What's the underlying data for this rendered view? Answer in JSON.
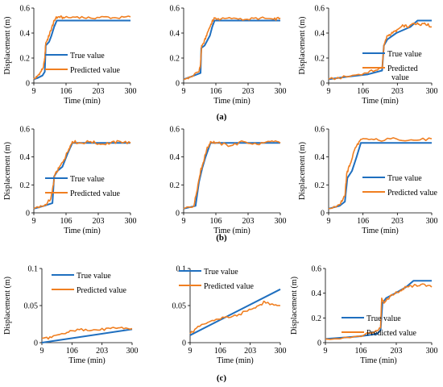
{
  "figure": {
    "captions": [
      "(a)",
      "(b)",
      "(c)"
    ],
    "colors": {
      "true": "#1f6fbf",
      "pred": "#f07f21",
      "axis": "#000000"
    }
  },
  "chart_data": [
    {
      "type": "line",
      "panel": "a1",
      "xlabel": "Time (min)",
      "ylabel": "Displacement (m)",
      "xlim": [
        9,
        300
      ],
      "ylim": [
        0,
        0.6
      ],
      "xticks": [
        "9",
        "106",
        "203",
        "300"
      ],
      "yticks": [
        "0",
        "0.2",
        "0.4",
        "0.6"
      ],
      "legend": [
        "True value",
        "Predicted value"
      ],
      "series": [
        {
          "name": "True value",
          "x": [
            9,
            20,
            35,
            42,
            45,
            55,
            62,
            70,
            78,
            300
          ],
          "y": [
            0.03,
            0.04,
            0.06,
            0.09,
            0.3,
            0.33,
            0.38,
            0.45,
            0.5,
            0.5
          ]
        },
        {
          "name": "Predicted value",
          "x": [
            9,
            18,
            30,
            38,
            42,
            45,
            52,
            60,
            68,
            75,
            85,
            100,
            140,
            180,
            220,
            260,
            300
          ],
          "y": [
            0.03,
            0.05,
            0.09,
            0.13,
            0.2,
            0.32,
            0.36,
            0.42,
            0.48,
            0.52,
            0.53,
            0.52,
            0.53,
            0.52,
            0.53,
            0.52,
            0.53
          ]
        }
      ]
    },
    {
      "type": "line",
      "panel": "a2",
      "xlabel": "Time (min)",
      "ylabel": "",
      "xlim": [
        9,
        300
      ],
      "ylim": [
        0,
        0.6
      ],
      "xticks": [
        "9",
        "106",
        "203",
        "300"
      ],
      "yticks": [
        "0",
        "0.2",
        "0.4",
        "0.6"
      ],
      "legend": [],
      "series": [
        {
          "name": "True value",
          "x": [
            9,
            30,
            60,
            62,
            72,
            88,
            95,
            102,
            300
          ],
          "y": [
            0.03,
            0.05,
            0.08,
            0.28,
            0.3,
            0.38,
            0.45,
            0.5,
            0.5
          ]
        },
        {
          "name": "Predicted value",
          "x": [
            9,
            30,
            55,
            60,
            63,
            70,
            80,
            90,
            97,
            102,
            120,
            160,
            200,
            240,
            280,
            300
          ],
          "y": [
            0.03,
            0.05,
            0.09,
            0.15,
            0.3,
            0.32,
            0.4,
            0.46,
            0.5,
            0.52,
            0.51,
            0.52,
            0.51,
            0.52,
            0.51,
            0.52
          ]
        }
      ]
    },
    {
      "type": "line",
      "panel": "a3",
      "xlabel": "Time (min)",
      "ylabel": "Displacement (m)",
      "xlim": [
        9,
        300
      ],
      "ylim": [
        0,
        0.6
      ],
      "xticks": [
        "9",
        "106",
        "203",
        "300"
      ],
      "yticks": [
        "0",
        "0.2",
        "0.4",
        "0.6"
      ],
      "legend": [
        "True value",
        "Predicted value"
      ],
      "series": [
        {
          "name": "True value",
          "x": [
            9,
            60,
            120,
            160,
            165,
            175,
            200,
            240,
            260,
            300
          ],
          "y": [
            0.03,
            0.05,
            0.07,
            0.1,
            0.3,
            0.35,
            0.4,
            0.45,
            0.5,
            0.5
          ]
        },
        {
          "name": "Predicted value",
          "x": [
            9,
            60,
            110,
            140,
            160,
            165,
            175,
            190,
            205,
            220,
            235,
            250,
            265,
            280,
            300
          ],
          "y": [
            0.03,
            0.05,
            0.08,
            0.1,
            0.12,
            0.3,
            0.38,
            0.4,
            0.43,
            0.46,
            0.45,
            0.48,
            0.47,
            0.48,
            0.45
          ]
        }
      ]
    },
    {
      "type": "line",
      "panel": "b1",
      "xlabel": "Time (min)",
      "ylabel": "Displacement (m)",
      "xlim": [
        9,
        300
      ],
      "ylim": [
        0,
        0.6
      ],
      "xticks": [
        "9",
        "106",
        "203",
        "300"
      ],
      "yticks": [
        "0",
        "0.2",
        "0.4",
        "0.6"
      ],
      "legend": [
        "True value",
        "Predicted value"
      ],
      "series": [
        {
          "name": "True value",
          "x": [
            9,
            40,
            65,
            70,
            80,
            95,
            110,
            125,
            300
          ],
          "y": [
            0.03,
            0.05,
            0.07,
            0.26,
            0.3,
            0.33,
            0.42,
            0.5,
            0.5
          ]
        },
        {
          "name": "Predicted value",
          "x": [
            9,
            40,
            60,
            68,
            72,
            85,
            100,
            115,
            125,
            150,
            180,
            210,
            240,
            270,
            300
          ],
          "y": [
            0.03,
            0.05,
            0.1,
            0.2,
            0.27,
            0.32,
            0.38,
            0.46,
            0.51,
            0.5,
            0.51,
            0.49,
            0.5,
            0.51,
            0.5
          ]
        }
      ]
    },
    {
      "type": "line",
      "panel": "b2",
      "xlabel": "Time (min)",
      "ylabel": "",
      "xlim": [
        9,
        300
      ],
      "ylim": [
        0,
        0.6
      ],
      "xticks": [
        "9",
        "106",
        "203",
        "300"
      ],
      "yticks": [
        "0",
        "0.2",
        "0.4",
        "0.6"
      ],
      "legend": [],
      "series": [
        {
          "name": "True value",
          "x": [
            9,
            45,
            55,
            65,
            75,
            90,
            300
          ],
          "y": [
            0.03,
            0.05,
            0.22,
            0.32,
            0.4,
            0.5,
            0.5
          ]
        },
        {
          "name": "Predicted value",
          "x": [
            9,
            40,
            52,
            60,
            68,
            78,
            90,
            110,
            150,
            190,
            230,
            270,
            300
          ],
          "y": [
            0.03,
            0.05,
            0.2,
            0.3,
            0.36,
            0.45,
            0.51,
            0.5,
            0.48,
            0.51,
            0.49,
            0.51,
            0.5
          ]
        }
      ]
    },
    {
      "type": "line",
      "panel": "b3",
      "xlabel": "Time (min)",
      "ylabel": "Displacement (m)",
      "xlim": [
        9,
        300
      ],
      "ylim": [
        0,
        0.6
      ],
      "xticks": [
        "9",
        "106",
        "203",
        "300"
      ],
      "yticks": [
        "0",
        "0.2",
        "0.4",
        "0.6"
      ],
      "legend": [
        "True value",
        "Predicted value"
      ],
      "series": [
        {
          "name": "True value",
          "x": [
            9,
            40,
            55,
            62,
            75,
            88,
            100,
            300
          ],
          "y": [
            0.03,
            0.05,
            0.08,
            0.25,
            0.3,
            0.4,
            0.5,
            0.5
          ]
        },
        {
          "name": "Predicted value",
          "x": [
            9,
            40,
            55,
            60,
            70,
            82,
            95,
            110,
            150,
            200,
            250,
            300
          ],
          "y": [
            0.03,
            0.06,
            0.12,
            0.28,
            0.35,
            0.45,
            0.51,
            0.53,
            0.52,
            0.53,
            0.52,
            0.53
          ]
        }
      ]
    },
    {
      "type": "line",
      "panel": "c1",
      "xlabel": "Time (min)",
      "ylabel": "Displacement (m)",
      "xlim": [
        9,
        300
      ],
      "ylim": [
        0,
        0.1
      ],
      "xticks": [
        "9",
        "106",
        "203",
        "300"
      ],
      "yticks": [
        "0",
        "0.05",
        "0.1"
      ],
      "legend": [
        "True value",
        "Predicted value"
      ],
      "series": [
        {
          "name": "True value",
          "x": [
            9,
            300
          ],
          "y": [
            0.0,
            0.018
          ]
        },
        {
          "name": "Predicted value",
          "x": [
            9,
            40,
            80,
            110,
            150,
            190,
            230,
            260,
            300
          ],
          "y": [
            0.006,
            0.007,
            0.012,
            0.016,
            0.018,
            0.017,
            0.019,
            0.02,
            0.019
          ]
        }
      ]
    },
    {
      "type": "line",
      "panel": "c2",
      "xlabel": "Time (min)",
      "ylabel": "",
      "xlim": [
        9,
        300
      ],
      "ylim": [
        0,
        0.1
      ],
      "xticks": [
        "9",
        "106",
        "203",
        "300"
      ],
      "yticks": [
        "0",
        "0.05",
        "0.1"
      ],
      "legend": [
        "True value",
        "Predicted value"
      ],
      "series": [
        {
          "name": "True value",
          "x": [
            9,
            300
          ],
          "y": [
            0.01,
            0.072
          ]
        },
        {
          "name": "Predicted value",
          "x": [
            9,
            40,
            80,
            120,
            160,
            200,
            230,
            250,
            270,
            300
          ],
          "y": [
            0.012,
            0.022,
            0.03,
            0.034,
            0.036,
            0.045,
            0.05,
            0.055,
            0.052,
            0.05
          ]
        }
      ]
    },
    {
      "type": "line",
      "panel": "c3",
      "xlabel": "Time (min)",
      "ylabel": "Displacement (m)",
      "xlim": [
        9,
        300
      ],
      "ylim": [
        0,
        0.6
      ],
      "xticks": [
        "9",
        "106",
        "203",
        "300"
      ],
      "yticks": [
        "0",
        "0.2",
        "0.4",
        "0.6"
      ],
      "legend": [
        "True value",
        "Predicted value"
      ],
      "series": [
        {
          "name": "True value",
          "x": [
            9,
            100,
            150,
            160,
            165,
            175,
            200,
            230,
            250,
            300
          ],
          "y": [
            0.03,
            0.05,
            0.07,
            0.1,
            0.32,
            0.36,
            0.4,
            0.45,
            0.5,
            0.5
          ]
        },
        {
          "name": "Predicted value",
          "x": [
            9,
            90,
            140,
            160,
            163,
            170,
            185,
            200,
            215,
            230,
            250,
            270,
            300
          ],
          "y": [
            0.03,
            0.05,
            0.08,
            0.12,
            0.36,
            0.32,
            0.37,
            0.4,
            0.42,
            0.45,
            0.46,
            0.47,
            0.45
          ]
        }
      ]
    }
  ]
}
